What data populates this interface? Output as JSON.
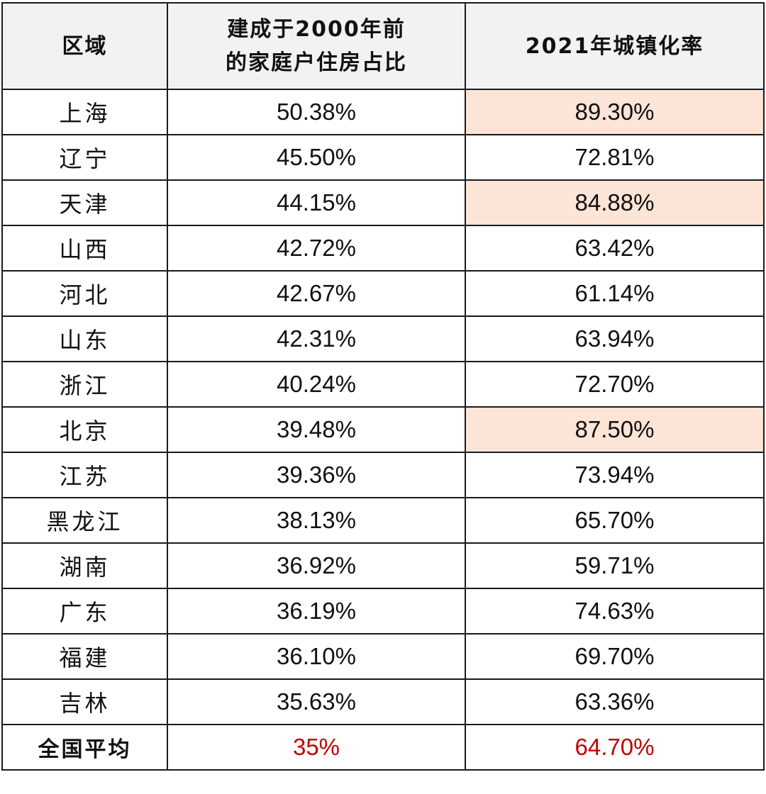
{
  "header": {
    "region": "区域",
    "pre2000_line1": "建成于2000年前",
    "pre2000_line2": "的家庭户住房占比",
    "urbanization": "2021年城镇化率"
  },
  "rows": [
    {
      "region": "上海",
      "pre2000": "50.38%",
      "urbanization": "89.30%",
      "highlight": true
    },
    {
      "region": "辽宁",
      "pre2000": "45.50%",
      "urbanization": "72.81%",
      "highlight": false
    },
    {
      "region": "天津",
      "pre2000": "44.15%",
      "urbanization": "84.88%",
      "highlight": true
    },
    {
      "region": "山西",
      "pre2000": "42.72%",
      "urbanization": "63.42%",
      "highlight": false
    },
    {
      "region": "河北",
      "pre2000": "42.67%",
      "urbanization": "61.14%",
      "highlight": false
    },
    {
      "region": "山东",
      "pre2000": "42.31%",
      "urbanization": "63.94%",
      "highlight": false
    },
    {
      "region": "浙江",
      "pre2000": "40.24%",
      "urbanization": "72.70%",
      "highlight": false
    },
    {
      "region": "北京",
      "pre2000": "39.48%",
      "urbanization": "87.50%",
      "highlight": true
    },
    {
      "region": "江苏",
      "pre2000": "39.36%",
      "urbanization": "73.94%",
      "highlight": false
    },
    {
      "region": "黑龙江",
      "pre2000": "38.13%",
      "urbanization": "65.70%",
      "highlight": false
    },
    {
      "region": "湖南",
      "pre2000": "36.92%",
      "urbanization": "59.71%",
      "highlight": false
    },
    {
      "region": "广东",
      "pre2000": "36.19%",
      "urbanization": "74.63%",
      "highlight": false
    },
    {
      "region": "福建",
      "pre2000": "36.10%",
      "urbanization": "69.70%",
      "highlight": false
    },
    {
      "region": "吉林",
      "pre2000": "35.63%",
      "urbanization": "63.36%",
      "highlight": false
    }
  ],
  "national_average": {
    "region": "全国平均",
    "pre2000": "35%",
    "urbanization": "64.70%"
  },
  "colors": {
    "highlight": "#fce4d6",
    "average_text": "#c00000",
    "header_bg": "#f2f2f2"
  }
}
